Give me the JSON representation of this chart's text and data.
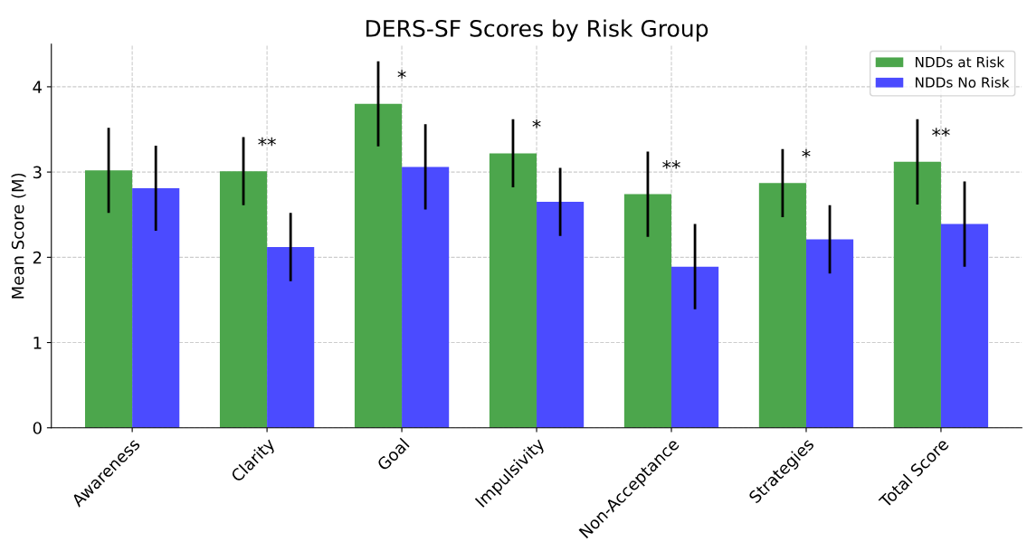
{
  "chart_data": {
    "type": "bar",
    "title": "DERS-SF Scores by Risk Group",
    "ylabel": "Mean Score (M)",
    "categories": [
      "Awareness",
      "Clarity",
      "Goal",
      "Impulsivity",
      "Non-Acceptance",
      "Strategies",
      "Total Score"
    ],
    "series": [
      {
        "name": "NDDs at Risk",
        "color": "#4ca64c",
        "values": [
          3.02,
          3.01,
          3.8,
          3.22,
          2.74,
          2.87,
          3.12
        ],
        "errors": [
          0.5,
          0.4,
          0.5,
          0.4,
          0.5,
          0.4,
          0.5
        ]
      },
      {
        "name": "NDDs No Risk",
        "color": "#4b4bff",
        "values": [
          2.81,
          2.12,
          3.06,
          2.65,
          1.89,
          2.21,
          2.39
        ],
        "errors": [
          0.5,
          0.4,
          0.5,
          0.4,
          0.5,
          0.4,
          0.5
        ]
      }
    ],
    "ylim": [
      0,
      4.5
    ],
    "yticks": [
      0,
      1,
      2,
      3,
      4
    ],
    "grid": true,
    "legend": "top right",
    "annotations": [
      {
        "text": "**",
        "x": "Clarity",
        "y": 3.01
      },
      {
        "text": "*",
        "x": "Goal",
        "y": 3.8
      },
      {
        "text": "*",
        "x": "Impulsivity",
        "y": 3.22
      },
      {
        "text": "**",
        "x": "Non-Acceptance",
        "y": 2.74
      },
      {
        "text": "*",
        "x": "Strategies",
        "y": 2.87
      },
      {
        "text": "**",
        "x": "Total Score",
        "y": 3.12
      }
    ]
  }
}
